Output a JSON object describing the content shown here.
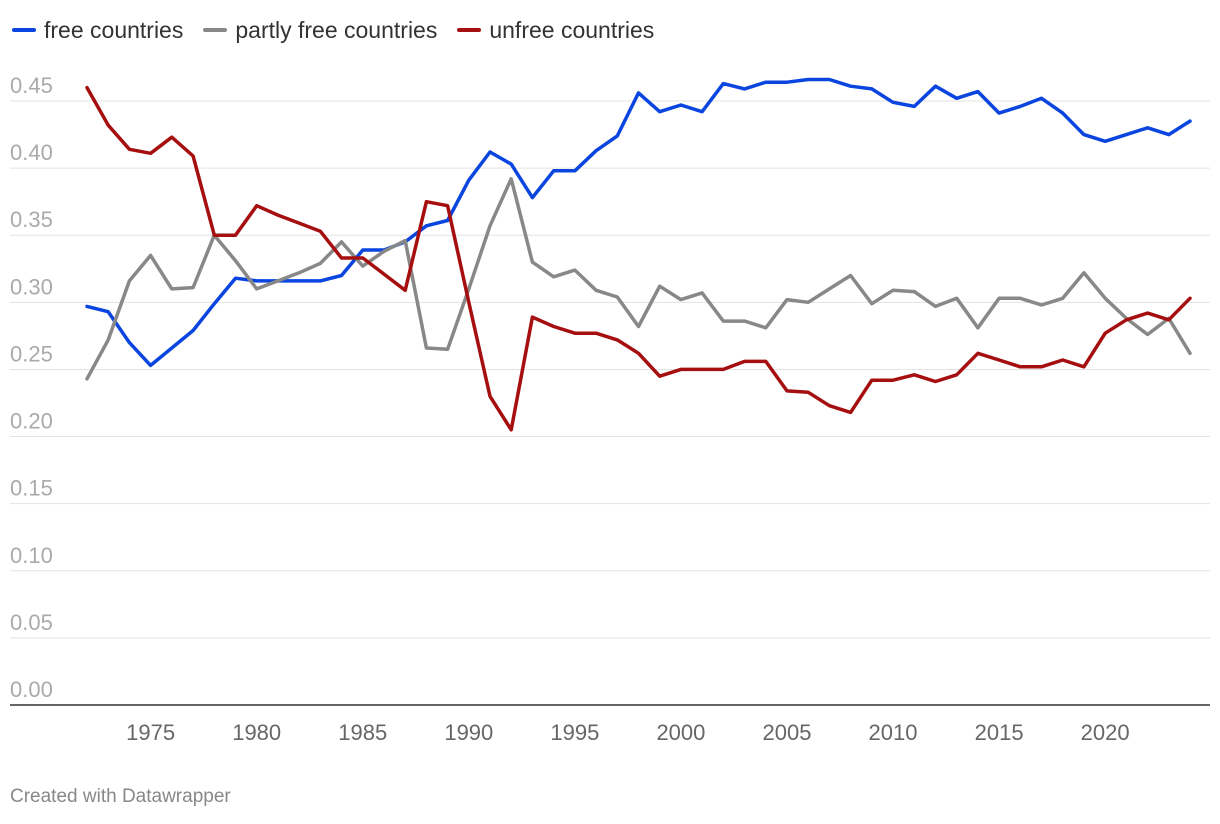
{
  "chart_data": {
    "type": "line",
    "title": "",
    "xlabel": "",
    "ylabel": "",
    "xlim": [
      1971,
      2024.5
    ],
    "ylim": [
      0,
      0.45
    ],
    "x": [
      1972,
      1973,
      1974,
      1975,
      1976,
      1977,
      1978,
      1979,
      1980,
      1981,
      1982,
      1983,
      1984,
      1985,
      1986,
      1987,
      1988,
      1989,
      1990,
      1991,
      1992,
      1993,
      1994,
      1995,
      1996,
      1997,
      1998,
      1999,
      2000,
      2001,
      2002,
      2003,
      2004,
      2005,
      2006,
      2007,
      2008,
      2009,
      2010,
      2011,
      2012,
      2013,
      2014,
      2015,
      2016,
      2017,
      2018,
      2019,
      2020,
      2021,
      2022,
      2023,
      2024
    ],
    "y_ticks": [
      "0.00",
      "0.05",
      "0.10",
      "0.15",
      "0.20",
      "0.25",
      "0.30",
      "0.35",
      "0.40",
      "0.45"
    ],
    "x_ticks": [
      "1975",
      "1980",
      "1985",
      "1990",
      "1995",
      "2000",
      "2005",
      "2010",
      "2015",
      "2020"
    ],
    "legend_position": "top-left",
    "series": [
      {
        "name": "free countries",
        "color": "#0a45e0",
        "values": [
          0.297,
          0.293,
          0.27,
          0.253,
          0.266,
          0.279,
          0.299,
          0.318,
          0.316,
          0.316,
          0.316,
          0.316,
          0.32,
          0.339,
          0.339,
          0.345,
          0.357,
          0.361,
          0.391,
          0.412,
          0.403,
          0.378,
          0.398,
          0.398,
          0.413,
          0.424,
          0.456,
          0.442,
          0.447,
          0.442,
          0.463,
          0.459,
          0.464,
          0.464,
          0.466,
          0.466,
          0.461,
          0.459,
          0.449,
          0.446,
          0.461,
          0.452,
          0.457,
          0.441,
          0.446,
          0.452,
          0.441,
          0.425,
          0.42,
          0.425,
          0.43,
          0.425,
          0.435
        ]
      },
      {
        "name": "partly free countries",
        "color": "#888888",
        "values": [
          0.243,
          0.272,
          0.316,
          0.335,
          0.31,
          0.311,
          0.35,
          0.331,
          0.31,
          0.316,
          0.322,
          0.329,
          0.345,
          0.327,
          0.338,
          0.346,
          0.266,
          0.265,
          0.31,
          0.357,
          0.392,
          0.33,
          0.319,
          0.324,
          0.309,
          0.304,
          0.282,
          0.312,
          0.302,
          0.307,
          0.286,
          0.286,
          0.281,
          0.302,
          0.3,
          0.31,
          0.32,
          0.299,
          0.309,
          0.308,
          0.297,
          0.303,
          0.281,
          0.303,
          0.303,
          0.298,
          0.303,
          0.322,
          0.303,
          0.288,
          0.276,
          0.288,
          0.262
        ]
      },
      {
        "name": "unfree countries",
        "color": "#a50f0f",
        "values": [
          0.46,
          0.432,
          0.414,
          0.411,
          0.423,
          0.409,
          0.35,
          0.35,
          0.372,
          0.365,
          0.359,
          0.353,
          0.333,
          0.333,
          0.321,
          0.309,
          0.375,
          0.372,
          0.3,
          0.23,
          0.205,
          0.289,
          0.282,
          0.277,
          0.277,
          0.272,
          0.262,
          0.245,
          0.25,
          0.25,
          0.25,
          0.256,
          0.256,
          0.234,
          0.233,
          0.223,
          0.218,
          0.242,
          0.242,
          0.246,
          0.241,
          0.246,
          0.262,
          0.257,
          0.252,
          0.252,
          0.257,
          0.252,
          0.277,
          0.287,
          0.292,
          0.287,
          0.303
        ]
      }
    ]
  },
  "footer": {
    "credit": "Created with Datawrapper"
  }
}
